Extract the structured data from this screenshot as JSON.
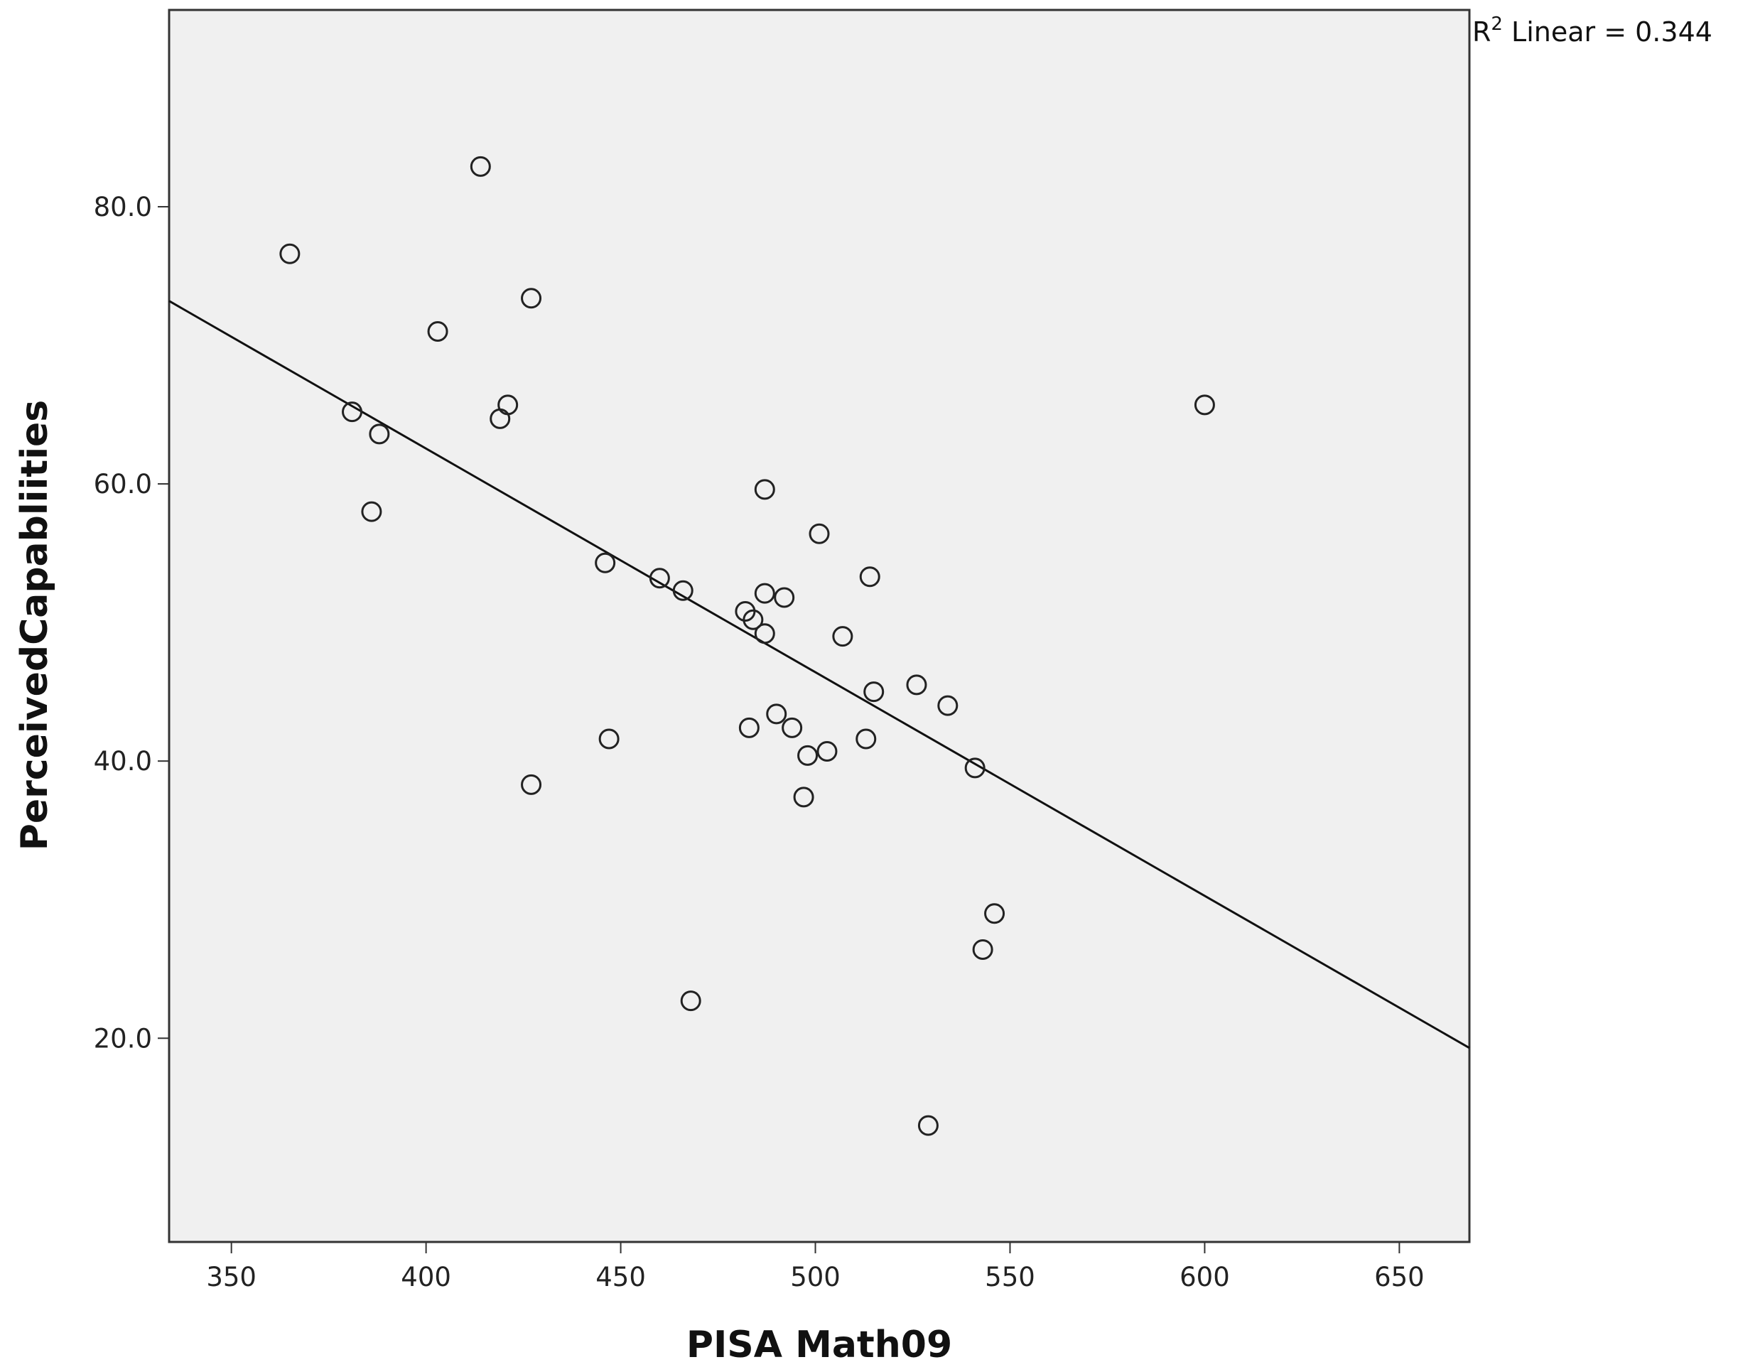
{
  "chart_data": {
    "type": "scatter",
    "title": "",
    "xlabel": "PISA Math09",
    "ylabel": "PerceivedCapabliities",
    "xlim": [
      334,
      668
    ],
    "ylim": [
      5.3,
      94.2
    ],
    "xticks": [
      "350",
      "400",
      "450",
      "500",
      "550",
      "600",
      "650"
    ],
    "xtick_values": [
      350,
      400,
      450,
      500,
      550,
      600,
      650
    ],
    "yticks": [
      "20.0",
      "40.0",
      "60.0",
      "80.0"
    ],
    "ytick_values": [
      20,
      40,
      60,
      80
    ],
    "grid": false,
    "legend": "none",
    "fit_line": {
      "type": "linear",
      "label_prefix": "R",
      "label_sup": "2",
      "label_suffix": " Linear = 0.344",
      "start": [
        334,
        73.2
      ],
      "end": [
        668,
        19.3
      ]
    },
    "points": [
      [
        365,
        76.6
      ],
      [
        381,
        65.2
      ],
      [
        386,
        58.0
      ],
      [
        388,
        63.6
      ],
      [
        403,
        71.0
      ],
      [
        414,
        82.9
      ],
      [
        419,
        64.7
      ],
      [
        421,
        65.7
      ],
      [
        427,
        73.4
      ],
      [
        427,
        38.3
      ],
      [
        446,
        54.3
      ],
      [
        447,
        41.6
      ],
      [
        460,
        53.2
      ],
      [
        466,
        52.3
      ],
      [
        468,
        22.7
      ],
      [
        482,
        50.8
      ],
      [
        483,
        42.4
      ],
      [
        484,
        50.2
      ],
      [
        487,
        52.1
      ],
      [
        487,
        59.6
      ],
      [
        487,
        49.2
      ],
      [
        490,
        43.4
      ],
      [
        492,
        51.8
      ],
      [
        494,
        42.4
      ],
      [
        497,
        37.4
      ],
      [
        498,
        40.4
      ],
      [
        501,
        56.4
      ],
      [
        503,
        40.7
      ],
      [
        507,
        49.0
      ],
      [
        513,
        41.6
      ],
      [
        514,
        53.3
      ],
      [
        515,
        45.0
      ],
      [
        526,
        45.5
      ],
      [
        529,
        13.7
      ],
      [
        534,
        44.0
      ],
      [
        541,
        39.5
      ],
      [
        543,
        26.4
      ],
      [
        546,
        29.0
      ],
      [
        600,
        65.7
      ]
    ]
  },
  "colors": {
    "plot_background": "#f0f0f0",
    "frame": "#333333",
    "marker_stroke": "#222222",
    "fit_line": "#111111"
  }
}
